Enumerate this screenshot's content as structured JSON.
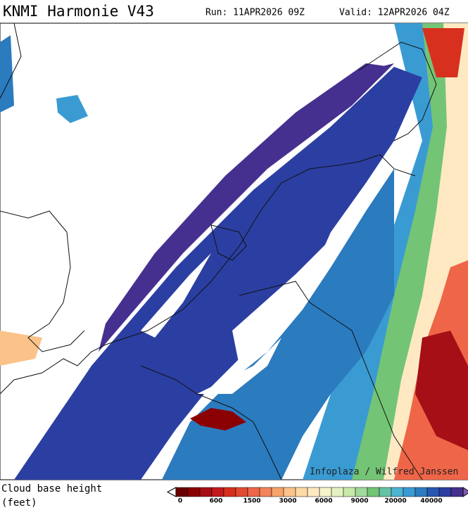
{
  "header": {
    "title": "KNMI Harmonie V43",
    "run": "Run: 11APR2026 09Z",
    "valid": "Valid: 12APR2026 04Z"
  },
  "map": {
    "credit": "Infoplaza / Wilfred Janssen"
  },
  "legend": {
    "title": [
      "Cloud base height",
      "(feet)"
    ],
    "labels": [
      "0",
      "600",
      "1500",
      "3000",
      "6000",
      "9000",
      "20000",
      "40000"
    ],
    "colors": [
      "#6b0000",
      "#8b0000",
      "#a50f15",
      "#c41a1c",
      "#d7301f",
      "#e34a33",
      "#ef6548",
      "#f4845b",
      "#f7a46b",
      "#fbc38a",
      "#fdd9a6",
      "#fee9c3",
      "#f6f4c8",
      "#e4f1c0",
      "#c7e9a9",
      "#a1d99b",
      "#74c476",
      "#66c2a4",
      "#4eb3d3",
      "#3a9bd3",
      "#2b7bbf",
      "#2757b0",
      "#2f3ea0",
      "#45308f"
    ]
  }
}
